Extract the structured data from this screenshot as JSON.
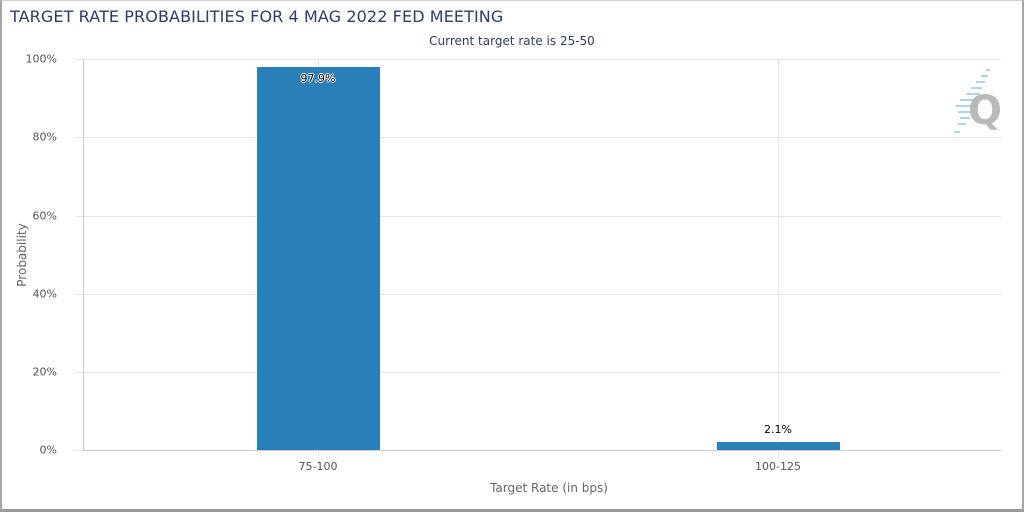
{
  "header": {
    "title": "TARGET RATE PROBABILITIES FOR 4 MAG 2022 FED MEETING",
    "subtitle": "Current target rate is 25-50"
  },
  "axes": {
    "ylabel": "Probability",
    "xlabel": "Target Rate (in bps)",
    "yticks": [
      "0%",
      "20%",
      "40%",
      "60%",
      "80%",
      "100%"
    ],
    "xticks": [
      "75-100",
      "100-125"
    ]
  },
  "bars": [
    {
      "category": "75-100",
      "value": 97.9,
      "label": "97.9%"
    },
    {
      "category": "100-125",
      "value": 2.1,
      "label": "2.1%"
    }
  ],
  "colors": {
    "bar": "#2980b9",
    "title": "#2d3e63"
  },
  "watermark": {
    "icon": "q-logo-icon",
    "letter": "Q"
  },
  "chart_data": {
    "type": "bar",
    "title": "TARGET RATE PROBABILITIES FOR 4 MAG 2022 FED MEETING",
    "subtitle": "Current target rate is 25-50",
    "categories": [
      "75-100",
      "100-125"
    ],
    "values": [
      97.9,
      2.1
    ],
    "data_labels": [
      "97.9%",
      "2.1%"
    ],
    "xlabel": "Target Rate (in bps)",
    "ylabel": "Probability",
    "ylim": [
      0,
      100
    ],
    "yticks": [
      0,
      20,
      40,
      60,
      80,
      100
    ],
    "ytick_format": "percent",
    "grid": true,
    "legend": null
  }
}
